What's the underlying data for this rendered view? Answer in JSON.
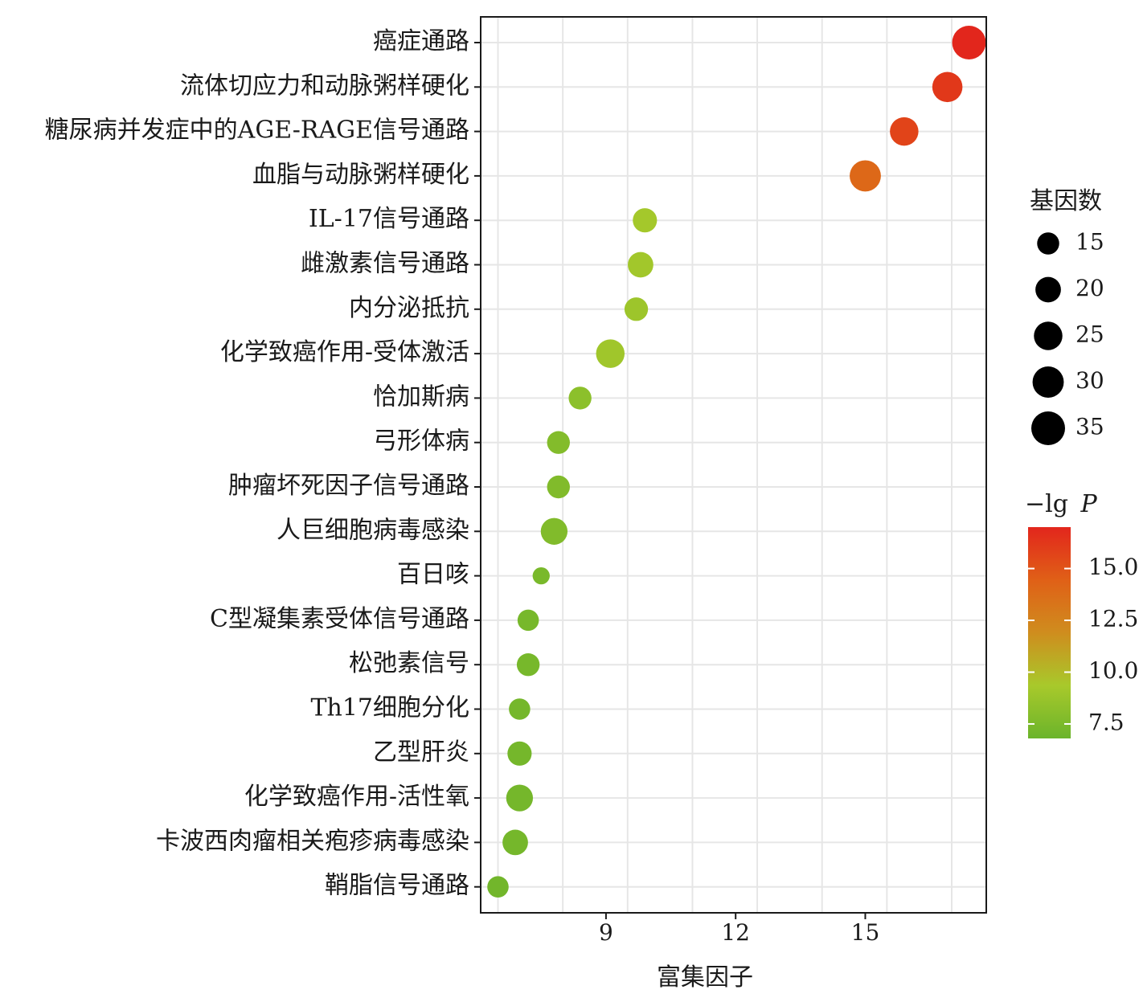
{
  "chart_data": {
    "type": "scatter",
    "xlabel": "富集因子",
    "ylabel": "",
    "xlim": [
      6.1,
      17.8
    ],
    "xticks": [
      9,
      12,
      15
    ],
    "grid": true,
    "categories": [
      "癌症通路",
      "流体切应力和动脉粥样硬化",
      "糖尿病并发症中的AGE-RAGE信号通路",
      "血脂与动脉粥样硬化",
      "IL-17信号通路",
      "雌激素信号通路",
      "内分泌抵抗",
      "化学致癌作用-受体激活",
      "恰加斯病",
      "弓形体病",
      "肿瘤坏死因子信号通路",
      "人巨细胞病毒感染",
      "百日咳",
      "C型凝集素受体信号通路",
      "松弛素信号",
      "Th17细胞分化",
      "乙型肝炎",
      "化学致癌作用-活性氧",
      "卡波西肉瘤相关疱疹病毒感染",
      "鞘脂信号通路"
    ],
    "enrichment_factor": [
      17.4,
      16.9,
      15.9,
      15.0,
      9.9,
      9.8,
      9.7,
      9.1,
      8.4,
      7.9,
      7.9,
      7.8,
      7.5,
      7.2,
      7.2,
      7.0,
      7.0,
      7.0,
      6.9,
      6.5
    ],
    "gene_count": [
      35,
      28,
      25,
      30,
      18,
      20,
      17,
      25,
      16,
      16,
      16,
      22,
      9,
      14,
      16,
      14,
      18,
      22,
      20,
      14
    ],
    "neg_log_p": [
      17.0,
      16.2,
      15.7,
      14.0,
      9.2,
      9.1,
      8.9,
      9.0,
      8.2,
      7.8,
      7.7,
      7.7,
      7.4,
      7.3,
      7.3,
      7.2,
      7.2,
      7.2,
      7.2,
      7.1
    ],
    "size_legend": {
      "title": "基因数",
      "values": [
        "15",
        "20",
        "25",
        "30",
        "35"
      ]
    },
    "color_legend": {
      "title_prefix": "−lg",
      "title_var": "P",
      "ticks": [
        "15.0",
        "12.5",
        "10.0",
        "7.5"
      ],
      "tick_values": [
        15.0,
        12.5,
        10.0,
        7.5
      ],
      "range": [
        6.8,
        17.0
      ],
      "colors": [
        "#6bb42b",
        "#a8c92b",
        "#cf8d1e",
        "#e06017",
        "#e2261c"
      ]
    }
  }
}
